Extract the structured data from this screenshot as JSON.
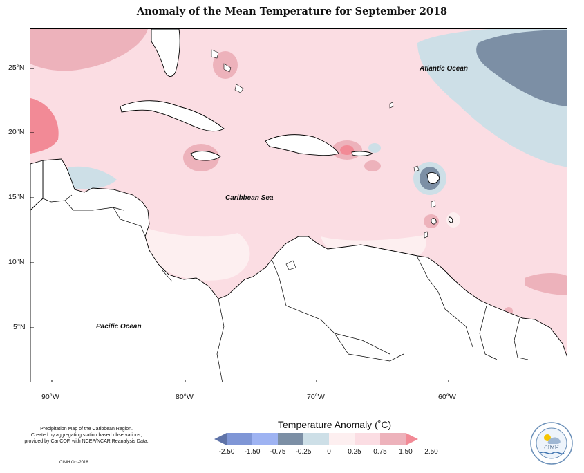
{
  "title": "Anomaly of the Mean Temperature for September 2018",
  "map_labels": {
    "atlantic": "Atlantic Ocean",
    "caribbean": "Caribbean Sea",
    "pacific": "Pacific Ocean"
  },
  "latitude_ticks": [
    "25°N",
    "20°N",
    "15°N",
    "10°N",
    "5°N"
  ],
  "longitude_ticks": [
    "90°W",
    "80°W",
    "70°W",
    "60°W"
  ],
  "legend": {
    "title": "Temperature Anomaly (˚C)",
    "tick_labels": [
      "-2.50",
      "-1.50",
      "-0.75",
      "-0.25",
      "0",
      "0.25",
      "0.75",
      "1.50",
      "2.50"
    ],
    "colors": [
      "#5f73a8",
      "#7f96d6",
      "#9eb3f2",
      "#7c8fa5",
      "#cddfe7",
      "#fdeff0",
      "#fbdde3",
      "#edb2bb",
      "#f28a96"
    ]
  },
  "footer": {
    "lines": [
      "Precipitation Map of the Caribbean Region.",
      "Created by aggregating station based observations,",
      "provided by CariCOF, with NCEP/NCAR Reanalysis Data."
    ],
    "credit": "CIMH Oct-2018",
    "logo_text": "CIMH"
  }
}
